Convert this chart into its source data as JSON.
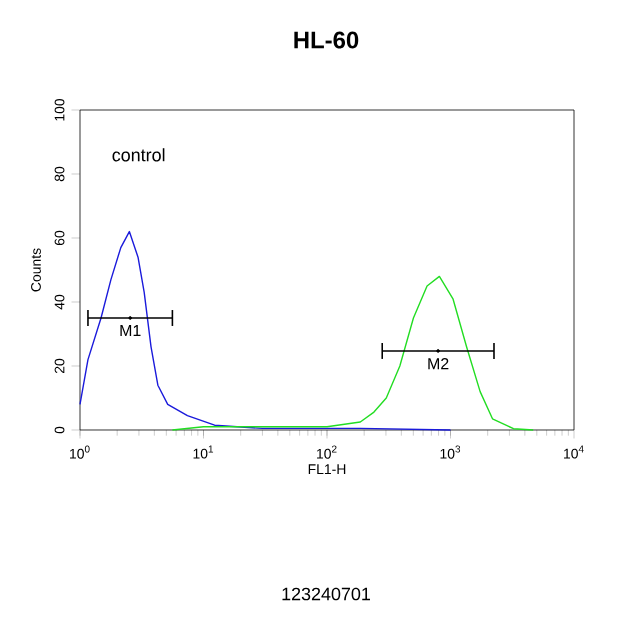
{
  "chart_data": {
    "type": "line",
    "title": "HL-60",
    "xlabel": "FL1-H",
    "ylabel": "Counts",
    "log": "x",
    "xlim": [
      1,
      10000
    ],
    "ylim": [
      0,
      100
    ],
    "xticks": [
      {
        "value": 1,
        "label": "10$^{0}$"
      },
      {
        "value": 10,
        "label": "10$^{1}$"
      },
      {
        "value": 100,
        "label": "10$^{2}$"
      },
      {
        "value": 1000,
        "label": "10$^{3}$"
      },
      {
        "value": 10000,
        "label": "10$^{4}$"
      }
    ],
    "yticks": [
      0,
      20,
      40,
      60,
      80,
      100
    ],
    "annotations": [
      "control",
      "123240701"
    ],
    "series": [
      {
        "color": "#1a1adb",
        "x": [
          1,
          1.16,
          1.48,
          1.78,
          2.14,
          2.51,
          2.95,
          3.31,
          3.76,
          4.27,
          5.13,
          7.41,
          12.3,
          30,
          100,
          186,
          1000
        ],
        "values": [
          8,
          22,
          35,
          47,
          57,
          62,
          54,
          43,
          26,
          14,
          8,
          4.5,
          1.5,
          0.5,
          0.5,
          0.5,
          0
        ]
      },
      {
        "color": "#22dd22",
        "x": [
          5.6,
          10,
          100,
          186,
          240,
          302,
          389,
          501,
          646,
          813,
          1047,
          1349,
          1738,
          2188,
          3236,
          4677
        ],
        "values": [
          0,
          1,
          1,
          2.5,
          5.6,
          10,
          20,
          35,
          45,
          48,
          41,
          26,
          12,
          3.5,
          0.4,
          0
        ]
      },
      {
        "type": "scatter",
        "name": "M1",
        "color": "#000000",
        "x": [
          2.55
        ],
        "values": [
          35
        ],
        "xerrors": [
          [
            1.16,
            5.6
          ]
        ]
      },
      {
        "type": "scatter",
        "name": "M2",
        "color": "#000000",
        "x": [
          794
        ],
        "values": [
          24.7
        ],
        "xerrors": [
          [
            280,
            2250
          ]
        ]
      }
    ]
  }
}
